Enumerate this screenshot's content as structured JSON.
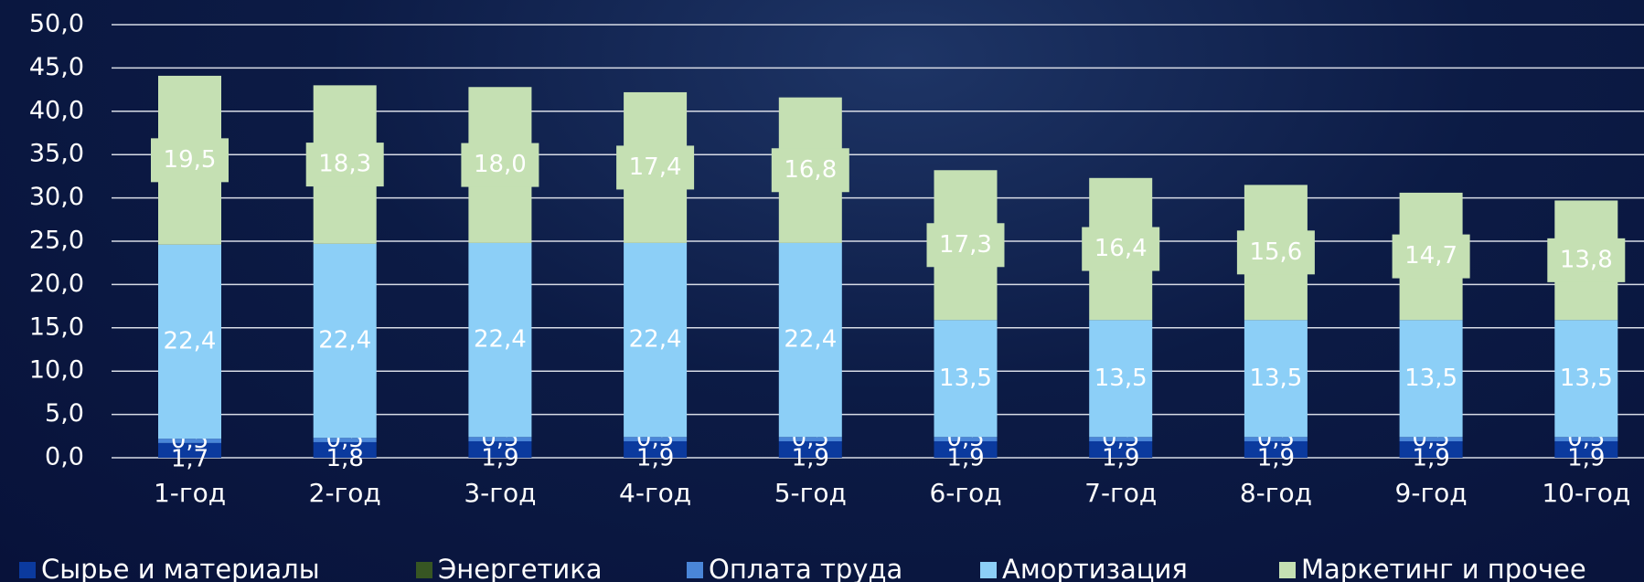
{
  "chart_data": {
    "type": "stacked_bar",
    "categories": [
      "1-год",
      "2-год",
      "3-год",
      "4-год",
      "5-год",
      "6-год",
      "7-год",
      "8-год",
      "9-год",
      "10-год"
    ],
    "series": [
      {
        "name": "Сырье и материалы",
        "color": "#0b3a9e",
        "values": [
          1.7,
          1.8,
          1.9,
          1.9,
          1.9,
          1.9,
          1.9,
          1.9,
          1.9,
          1.9
        ],
        "value_labels": [
          "1,7",
          "1,8",
          "1,9",
          "1,9",
          "1,9",
          "1,9",
          "1,9",
          "1,9",
          "1,9",
          "1,9"
        ]
      },
      {
        "name": "Энергетика",
        "color": "#375623",
        "values": [
          0,
          0,
          0,
          0,
          0,
          0,
          0,
          0,
          0,
          0
        ]
      },
      {
        "name": "Оплата труда",
        "color": "#4a86d8",
        "values": [
          0.5,
          0.5,
          0.5,
          0.5,
          0.5,
          0.5,
          0.5,
          0.5,
          0.5,
          0.5
        ],
        "value_labels": [
          "0,5",
          "0,5",
          "0,5",
          "0,5",
          "0,5",
          "0,5",
          "0,5",
          "0,5",
          "0,5",
          "0,5"
        ]
      },
      {
        "name": "Амортизация",
        "color": "#8ccff7",
        "values": [
          22.4,
          22.4,
          22.4,
          22.4,
          22.4,
          13.5,
          13.5,
          13.5,
          13.5,
          13.5
        ],
        "value_labels": [
          "22,4",
          "22,4",
          "22,4",
          "22,4",
          "22,4",
          "13,5",
          "13,5",
          "13,5",
          "13,5",
          "13,5"
        ]
      },
      {
        "name": "Маркетинг и прочее",
        "color": "#c5e0b3",
        "values": [
          19.5,
          18.3,
          18.0,
          17.4,
          16.8,
          17.3,
          16.4,
          15.6,
          14.7,
          13.8
        ],
        "value_labels": [
          "19,5",
          "18,3",
          "18,0",
          "17,4",
          "16,8",
          "17,3",
          "16,4",
          "15,6",
          "14,7",
          "13,8"
        ]
      }
    ],
    "ylim": [
      0,
      50
    ],
    "yticks": [
      {
        "value": 0,
        "label": "0,0"
      },
      {
        "value": 5,
        "label": "5,0"
      },
      {
        "value": 10,
        "label": "10,0"
      },
      {
        "value": 15,
        "label": "15,0"
      },
      {
        "value": 20,
        "label": "20,0"
      },
      {
        "value": 25,
        "label": "25,0"
      },
      {
        "value": 30,
        "label": "30,0"
      },
      {
        "value": 35,
        "label": "35,0"
      },
      {
        "value": 40,
        "label": "40,0"
      },
      {
        "value": 45,
        "label": "45,0"
      },
      {
        "value": 50,
        "label": "50,0"
      }
    ],
    "grid": true,
    "legend": "bottom"
  }
}
